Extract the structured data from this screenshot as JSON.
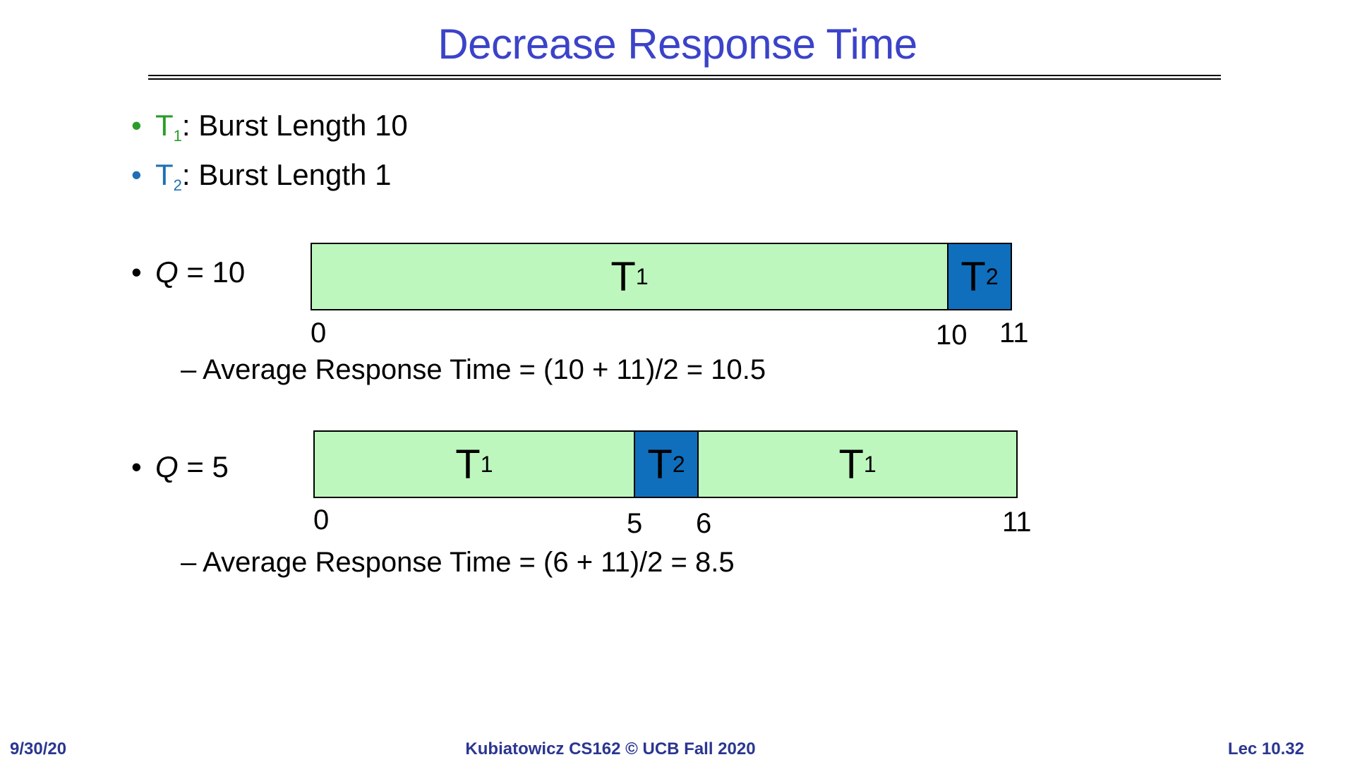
{
  "title": "Decrease Response Time",
  "bullets": [
    {
      "task": "T",
      "sub": "1",
      "text": ": Burst Length 10",
      "color": "#2a9d2a"
    },
    {
      "task": "T",
      "sub": "2",
      "text": ": Burst Length 1",
      "color": "#1f6fb5"
    }
  ],
  "sections": [
    {
      "q_label": "Q",
      "q_value": " = 10",
      "segments": [
        {
          "task": "T",
          "sub": "1",
          "start": 0,
          "end": 10
        },
        {
          "task": "T",
          "sub": "2",
          "start": 10,
          "end": 11
        }
      ],
      "ticks": [
        "0",
        "10",
        "11"
      ],
      "avg": "– Average Response Time = (10 + 11)/2 = 10.5"
    },
    {
      "q_label": "Q",
      "q_value": " = 5",
      "segments": [
        {
          "task": "T",
          "sub": "1",
          "start": 0,
          "end": 5
        },
        {
          "task": "T",
          "sub": "2",
          "start": 5,
          "end": 6
        },
        {
          "task": "T",
          "sub": "1",
          "start": 6,
          "end": 11
        }
      ],
      "ticks": [
        "0",
        "5",
        "6",
        "11"
      ],
      "avg": "– Average Response Time = (6 + 11)/2 = 8.5"
    }
  ],
  "footer": {
    "date": "9/30/20",
    "course": "Kubiatowicz CS162 © UCB Fall 2020",
    "lecture": "Lec 10.32"
  },
  "colors": {
    "title": "#3b43c9",
    "t1_fill": "#bdf7bd",
    "t2_fill": "#0f6fbd",
    "footer": "#2b3690"
  }
}
